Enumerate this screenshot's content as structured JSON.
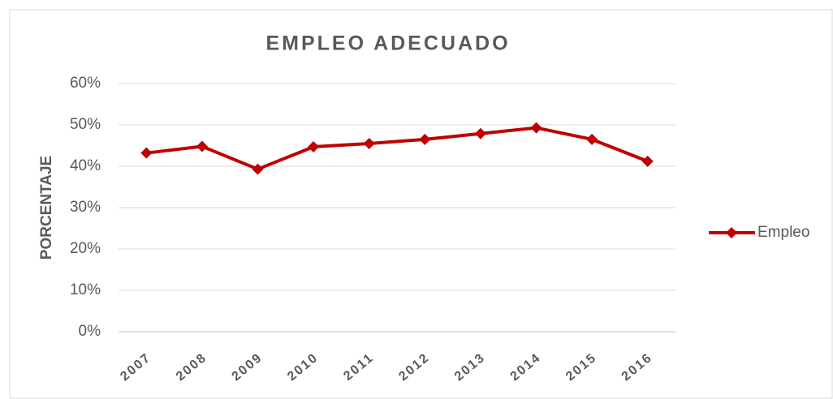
{
  "chart_data": {
    "type": "line",
    "title": "EMPLEO ADECUADO",
    "y_label": "PORCENTAJE",
    "categories": [
      "2007",
      "2008",
      "2009",
      "2010",
      "2011",
      "2012",
      "2013",
      "2014",
      "2015",
      "2016"
    ],
    "series": [
      {
        "name": "Empleo",
        "color": "#c00000",
        "values": [
          43.2,
          44.8,
          39.3,
          44.7,
          45.5,
          46.5,
          47.9,
          49.3,
          46.5,
          41.2
        ]
      }
    ],
    "ylim": [
      0,
      60
    ],
    "yticks": [
      {
        "value": 0,
        "label": "0%"
      },
      {
        "value": 10,
        "label": "10%"
      },
      {
        "value": 20,
        "label": "20%"
      },
      {
        "value": 30,
        "label": "30%"
      },
      {
        "value": 40,
        "label": "40%"
      },
      {
        "value": 50,
        "label": "50%"
      },
      {
        "value": 60,
        "label": "60%"
      }
    ],
    "grid": true,
    "legend": "right"
  }
}
